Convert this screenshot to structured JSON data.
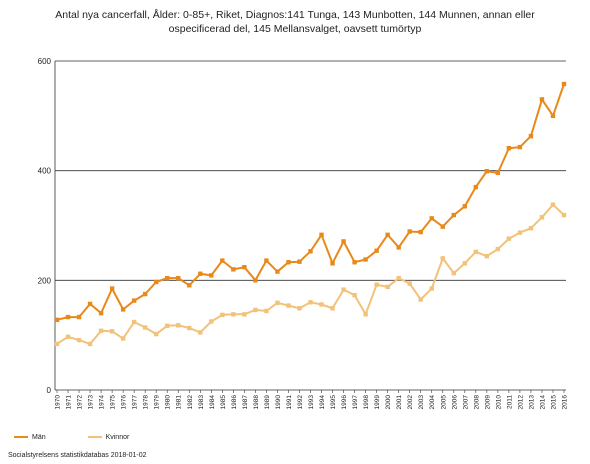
{
  "chart_data": {
    "type": "line",
    "title_line1": "Antal nya cancerfall, Ålder: 0-85+, Riket, Diagnos:141 Tunga, 143 Munbotten, 144 Munnen, annan eller",
    "title_line2": "ospecificerad del, 145 Mellansvalget, oavsett tumörtyp",
    "xlabel": "",
    "ylabel": "",
    "ylim": [
      0,
      600
    ],
    "yticks": [
      0,
      200,
      400,
      600
    ],
    "grid": true,
    "legend_position": "bottom-left",
    "categories": [
      "1970",
      "1971",
      "1972",
      "1973",
      "1974",
      "1975",
      "1976",
      "1977",
      "1978",
      "1979",
      "1980",
      "1981",
      "1982",
      "1983",
      "1984",
      "1985",
      "1986",
      "1987",
      "1988",
      "1989",
      "1990",
      "1991",
      "1992",
      "1993",
      "1994",
      "1995",
      "1996",
      "1997",
      "1998",
      "1999",
      "2000",
      "2001",
      "2002",
      "2003",
      "2004",
      "2005",
      "2006",
      "2007",
      "2008",
      "2009",
      "2010",
      "2011",
      "2012",
      "2013",
      "2014",
      "2015",
      "2016"
    ],
    "series": [
      {
        "name": "Män",
        "color": "#e8891a",
        "values": [
          128,
          133,
          133,
          157,
          140,
          185,
          147,
          163,
          175,
          197,
          204,
          204,
          191,
          212,
          209,
          236,
          220,
          224,
          200,
          236,
          216,
          233,
          234,
          253,
          283,
          231,
          271,
          233,
          238,
          254,
          283,
          260,
          289,
          288,
          313,
          298,
          319,
          335,
          370,
          399,
          396,
          441,
          443,
          463,
          530,
          500,
          558
        ]
      },
      {
        "name": "Kvinnor",
        "color": "#f2c27a",
        "values": [
          84,
          97,
          91,
          84,
          108,
          107,
          94,
          124,
          114,
          102,
          117,
          118,
          113,
          105,
          125,
          137,
          138,
          138,
          146,
          144,
          159,
          154,
          149,
          160,
          156,
          149,
          183,
          173,
          138,
          192,
          188,
          204,
          194,
          165,
          185,
          240,
          213,
          231,
          252,
          244,
          257,
          276,
          287,
          295,
          315,
          338,
          319
        ]
      }
    ]
  },
  "footer": {
    "source": "Socialstyrelsens statistikdatabas 2018-01-02"
  }
}
